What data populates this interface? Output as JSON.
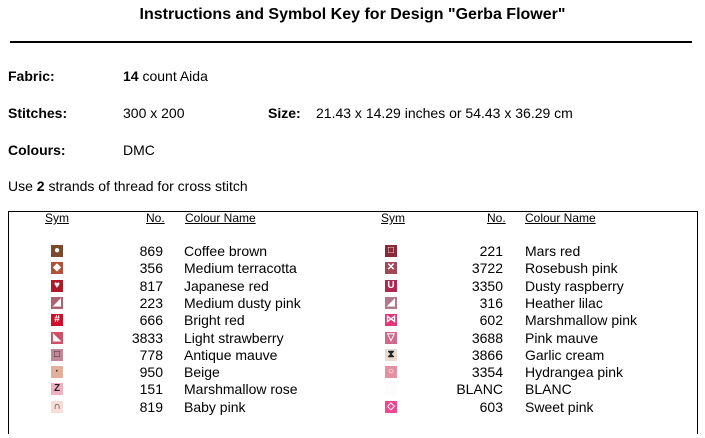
{
  "title": "Instructions and Symbol Key for Design \"Gerba Flower\"",
  "fabric": {
    "label": "Fabric:",
    "count": "14",
    "rest": "count Aida"
  },
  "stitches": {
    "label": "Stitches:",
    "value": "300 x 200"
  },
  "size": {
    "label": "Size:",
    "value": "21.43 x 14.29 inches or 54.43 x 36.29 cm"
  },
  "colours": {
    "label": "Colours:",
    "value": "DMC"
  },
  "strands": {
    "pre": "Use",
    "count": "2",
    "post": "strands of thread for cross stitch"
  },
  "headers": {
    "sym": "Sym",
    "no": "No.",
    "name": "Colour Name"
  },
  "left": [
    {
      "no": "869",
      "name": "Coffee brown",
      "color": "#7a4a2a",
      "icon": "circle-icon",
      "glyph": "●"
    },
    {
      "no": "356",
      "name": "Medium terracotta",
      "color": "#b2503c",
      "icon": "diamond-icon",
      "glyph": "◆"
    },
    {
      "no": "817",
      "name": "Japanese red",
      "color": "#b01828",
      "icon": "heart-icon",
      "glyph": "♥"
    },
    {
      "no": "223",
      "name": "Medium dusty pink",
      "color": "#b06070",
      "icon": "triangle-icon",
      "glyph": "◢"
    },
    {
      "no": "666",
      "name": "Bright red",
      "color": "#d0102a",
      "icon": "hash-icon",
      "glyph": "#"
    },
    {
      "no": "3833",
      "name": "Light strawberry",
      "color": "#d05068",
      "icon": "right-triangle-icon",
      "glyph": "◣"
    },
    {
      "no": "778",
      "name": "Antique mauve",
      "color": "#c08898",
      "icon": "square-outline-icon",
      "glyph": "□"
    },
    {
      "no": "950",
      "name": "Beige",
      "color": "#e0b098",
      "icon": "dot-icon",
      "glyph": "·"
    },
    {
      "no": "151",
      "name": "Marshmallow rose",
      "color": "#f0b0c0",
      "icon": "z-icon",
      "glyph": "Z"
    },
    {
      "no": "819",
      "name": "Baby pink",
      "color": "#f8dcd8",
      "icon": "arch-icon",
      "glyph": "∩"
    }
  ],
  "right": [
    {
      "no": "221",
      "name": "Mars red",
      "color": "#8a2838",
      "icon": "square-outline-icon",
      "glyph": "□"
    },
    {
      "no": "3722",
      "name": "Rosebush pink",
      "color": "#a04858",
      "icon": "x-icon",
      "glyph": "✕"
    },
    {
      "no": "3350",
      "name": "Dusty raspberry",
      "color": "#b02850",
      "icon": "u-icon",
      "glyph": "U"
    },
    {
      "no": "316",
      "name": "Heather lilac",
      "color": "#b07888",
      "icon": "triangle-icon",
      "glyph": "◢"
    },
    {
      "no": "602",
      "name": "Marshmallow pink",
      "color": "#e03878",
      "icon": "bowtie-icon",
      "glyph": "⋈"
    },
    {
      "no": "3688",
      "name": "Pink mauve",
      "color": "#d06888",
      "icon": "down-triangle-icon",
      "glyph": "▽"
    },
    {
      "no": "3866",
      "name": "Garlic cream",
      "color": "#e8dcd0",
      "icon": "hourglass-icon",
      "glyph": "⧗"
    },
    {
      "no": "3354",
      "name": "Hydrangea pink",
      "color": "#e490a0",
      "icon": "circle-outline-icon",
      "glyph": "○"
    },
    {
      "no": "BLANC",
      "name": "BLANC",
      "color": "#fcfcfc",
      "icon": "blank-icon",
      "glyph": ""
    },
    {
      "no": "603",
      "name": "Sweet pink",
      "color": "#f04890",
      "icon": "diamond-outline-icon",
      "glyph": "◇"
    }
  ]
}
